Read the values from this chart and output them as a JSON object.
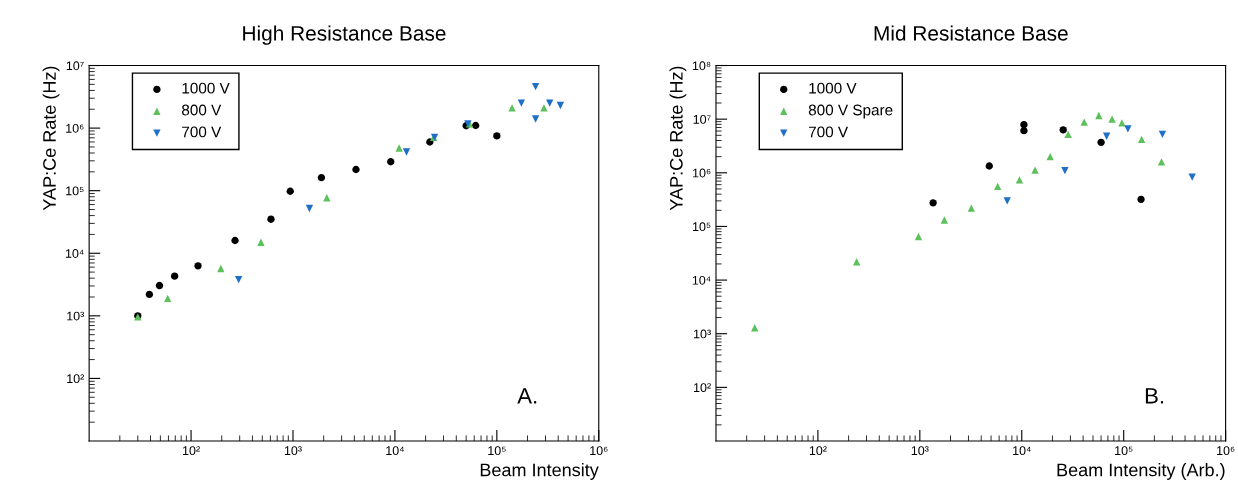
{
  "chart_data": [
    {
      "type": "scatter",
      "title": "High Resistance Base",
      "xlabel": "Beam Intensity",
      "ylabel": "YAP:Ce Rate (Hz)",
      "log": "xy",
      "grid": false,
      "legend": "top left",
      "xlim": [
        10,
        1000000
      ],
      "xticks": [
        {
          "value": 100,
          "label": "10²"
        },
        {
          "value": 1000,
          "label": "10³"
        },
        {
          "value": 10000,
          "label": "10⁴"
        },
        {
          "value": 100000,
          "label": "10⁵"
        },
        {
          "value": 1000000,
          "label": "10⁶"
        }
      ],
      "ylim": [
        10,
        10000000
      ],
      "yticks": [
        {
          "value": 100,
          "label": "10²"
        },
        {
          "value": 1000,
          "label": "10³"
        },
        {
          "value": 10000,
          "label": "10⁴"
        },
        {
          "value": 100000,
          "label": "10⁵"
        },
        {
          "value": 1000000,
          "label": "10⁶"
        },
        {
          "value": 10000000,
          "label": "10⁷"
        }
      ],
      "annotations": [
        "A."
      ],
      "series": [
        {
          "name": "1000 V",
          "color": "#000000",
          "marker": "circle",
          "x": [
            30,
            39,
            49,
            69,
            117,
            270,
            608,
            940,
            1900,
            4150,
            9100,
            22000,
            50000,
            62000,
            100000
          ],
          "values": [
            1000,
            2200,
            3050,
            4300,
            6300,
            16000,
            35000,
            98000,
            162000,
            218000,
            290000,
            600000,
            1090000,
            1100000,
            750000
          ]
        },
        {
          "name": "800 V",
          "color": "#5cc05c",
          "marker": "triangle",
          "x": [
            30,
            59,
            196,
            485,
            2150,
            11000,
            24000,
            54000,
            141000,
            290000
          ],
          "values": [
            960,
            1900,
            5700,
            15000,
            77000,
            480000,
            710000,
            1170000,
            2100000,
            2100000
          ]
        },
        {
          "name": "700 V",
          "color": "#1f6fc8",
          "marker": "triangle_down",
          "x": [
            293,
            1450,
            13000,
            24500,
            52000,
            174000,
            240000,
            240000,
            330000,
            420000
          ],
          "values": [
            3800,
            52000,
            415000,
            710000,
            1170000,
            2500000,
            4600000,
            1400000,
            2500000,
            2300000
          ]
        }
      ]
    },
    {
      "type": "scatter",
      "title": "Mid Resistance Base",
      "xlabel": "Beam Intensity (Arb.)",
      "ylabel": "YAP:Ce Rate (Hz)",
      "log": "xy",
      "grid": false,
      "legend": "top left",
      "xlim": [
        10,
        1000000
      ],
      "xticks": [
        {
          "value": 100,
          "label": "10²"
        },
        {
          "value": 1000,
          "label": "10³"
        },
        {
          "value": 10000,
          "label": "10⁴"
        },
        {
          "value": 100000,
          "label": "10⁵"
        },
        {
          "value": 1000000,
          "label": "10⁶"
        }
      ],
      "ylim": [
        10,
        100000000
      ],
      "yticks": [
        {
          "value": 100,
          "label": "10²"
        },
        {
          "value": 1000,
          "label": "10³"
        },
        {
          "value": 10000,
          "label": "10⁴"
        },
        {
          "value": 100000,
          "label": "10⁵"
        },
        {
          "value": 1000000,
          "label": "10⁶"
        },
        {
          "value": 10000000,
          "label": "10⁷"
        },
        {
          "value": 100000000,
          "label": "10⁸"
        }
      ],
      "annotations": [
        "B."
      ],
      "series": [
        {
          "name": "1000 V",
          "color": "#000000",
          "marker": "circle",
          "x": [
            1350,
            4800,
            10500,
            10500,
            25500,
            60000,
            148000
          ],
          "values": [
            275000,
            1340000,
            7900000,
            6100000,
            6300000,
            3700000,
            320000
          ]
        },
        {
          "name": "800 V Spare",
          "color": "#5cc05c",
          "marker": "triangle",
          "x": [
            24,
            240,
            970,
            1740,
            3200,
            5800,
            9500,
            13500,
            19000,
            28500,
            41000,
            57000,
            77000,
            96000,
            150000,
            235000
          ],
          "values": [
            1290,
            22000,
            65000,
            132000,
            219000,
            560000,
            740000,
            1120000,
            2000000,
            5200000,
            8800000,
            11700000,
            10000000,
            8500000,
            4200000,
            1600000
          ]
        },
        {
          "name": "700 V",
          "color": "#1f6fc8",
          "marker": "triangle_down",
          "x": [
            7200,
            26500,
            68000,
            110000,
            240000,
            470000
          ],
          "values": [
            300000,
            1100000,
            4800000,
            6600000,
            5200000,
            830000
          ]
        }
      ]
    }
  ]
}
